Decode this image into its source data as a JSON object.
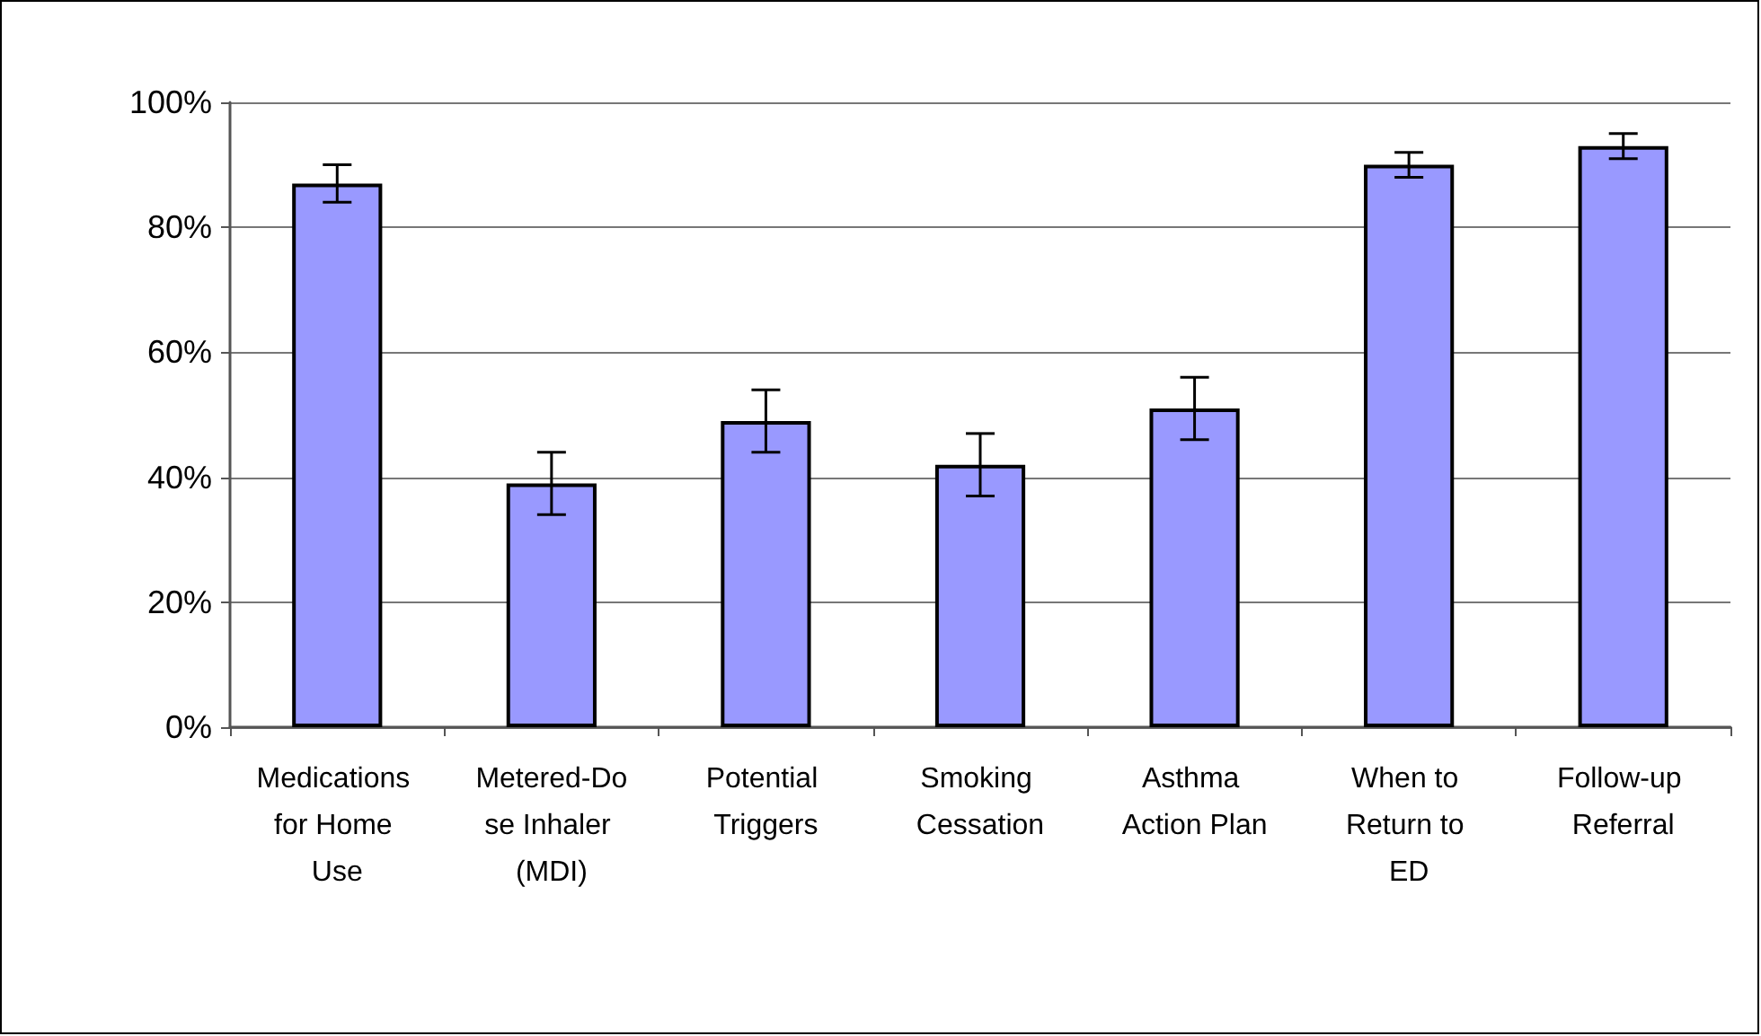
{
  "chart_data": {
    "type": "bar",
    "categories": [
      "Medications for Home Use",
      "Metered-Dose Inhaler (MDI)",
      "Potential Triggers",
      "Smoking Cessation",
      "Asthma Action Plan",
      "When to Return to ED",
      "Follow-up Referral"
    ],
    "values": [
      87,
      39,
      49,
      42,
      51,
      90,
      93
    ],
    "errors": [
      3,
      5,
      5,
      5,
      5,
      2,
      2
    ],
    "color": "#9999ff",
    "ylim": [
      0,
      100
    ],
    "yticks": [
      {
        "value": 0,
        "label": "0%"
      },
      {
        "value": 20,
        "label": "20%"
      },
      {
        "value": 40,
        "label": "40%"
      },
      {
        "value": 60,
        "label": "60%"
      },
      {
        "value": 80,
        "label": "80%"
      },
      {
        "value": 100,
        "label": "100%"
      }
    ],
    "grid": "y"
  }
}
